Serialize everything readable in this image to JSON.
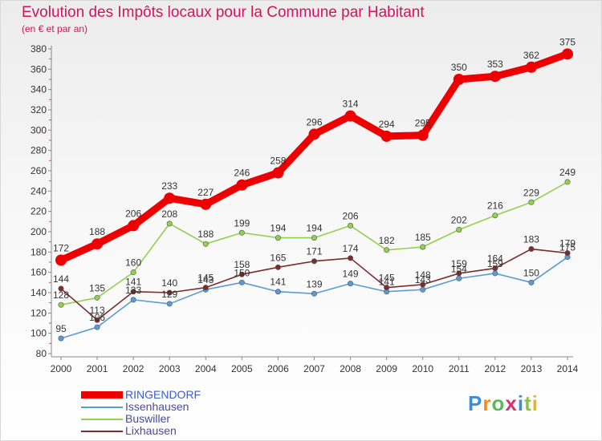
{
  "header": {
    "title": "Evolution des Impôts locaux pour la Commune par Habitant",
    "subtitle": "(en € et par an)"
  },
  "logo": {
    "text": "Proxiti",
    "letter_colors": [
      "#3a8fd8",
      "#f28c1e",
      "#5cb85c",
      "#d6336c",
      "#3a8fd8",
      "#8bc34a",
      "#f2b01e"
    ]
  },
  "chart_data": {
    "type": "line",
    "title": "Evolution des Impôts locaux pour la Commune par Habitant",
    "subtitle": "(en € et par an)",
    "xlabel": "",
    "ylabel": "",
    "ylim": [
      80,
      380
    ],
    "y_ticks": [
      80,
      100,
      120,
      140,
      160,
      180,
      200,
      220,
      240,
      260,
      280,
      300,
      320,
      340,
      360,
      380
    ],
    "grid": false,
    "categories": [
      "2000",
      "2001",
      "2002",
      "2003",
      "2004",
      "2005",
      "2006",
      "2007",
      "2008",
      "2009",
      "2010",
      "2011",
      "2012",
      "2013",
      "2014"
    ],
    "series": [
      {
        "name": "RINGENDORF",
        "color": "#ee0000",
        "primary": true,
        "values": [
          172,
          188,
          206,
          233,
          227,
          246,
          258,
          296,
          314,
          294,
          295,
          350,
          353,
          362,
          375
        ],
        "labels": [
          "172",
          "188",
          "206",
          "233",
          "227",
          "246",
          "258",
          "296",
          "314",
          "294",
          "295",
          "350",
          "353",
          "362",
          "375"
        ]
      },
      {
        "name": "Issenhausen",
        "color": "#5b9bd5",
        "primary": false,
        "values": [
          95,
          106,
          133,
          129,
          143,
          150,
          141,
          139,
          149,
          141,
          143,
          154,
          159,
          150,
          175
        ],
        "labels": [
          "95",
          "106",
          "133",
          "129",
          "143",
          "150",
          "141",
          "139",
          "149",
          "141",
          "143",
          "154",
          "159",
          "150",
          "175"
        ]
      },
      {
        "name": "Buswiller",
        "color": "#92d050",
        "primary": false,
        "values": [
          128,
          135,
          160,
          208,
          188,
          199,
          194,
          194,
          206,
          182,
          185,
          202,
          216,
          229,
          249
        ],
        "labels": [
          "128",
          "135",
          "160",
          "208",
          "188",
          "199",
          "194",
          "194",
          "206",
          "182",
          "185",
          "202",
          "216",
          "229",
          "249"
        ]
      },
      {
        "name": "Lixhausen",
        "color": "#7b2c2c",
        "primary": false,
        "values": [
          144,
          113,
          141,
          140,
          145,
          158,
          165,
          171,
          174,
          145,
          148,
          159,
          164,
          183,
          179
        ],
        "labels": [
          "144",
          "113",
          "141",
          "140",
          "145",
          "158",
          "165",
          "171",
          "174",
          "145",
          "148",
          "159",
          "164",
          "183",
          "179"
        ]
      }
    ],
    "legend_position": "bottom-left"
  }
}
